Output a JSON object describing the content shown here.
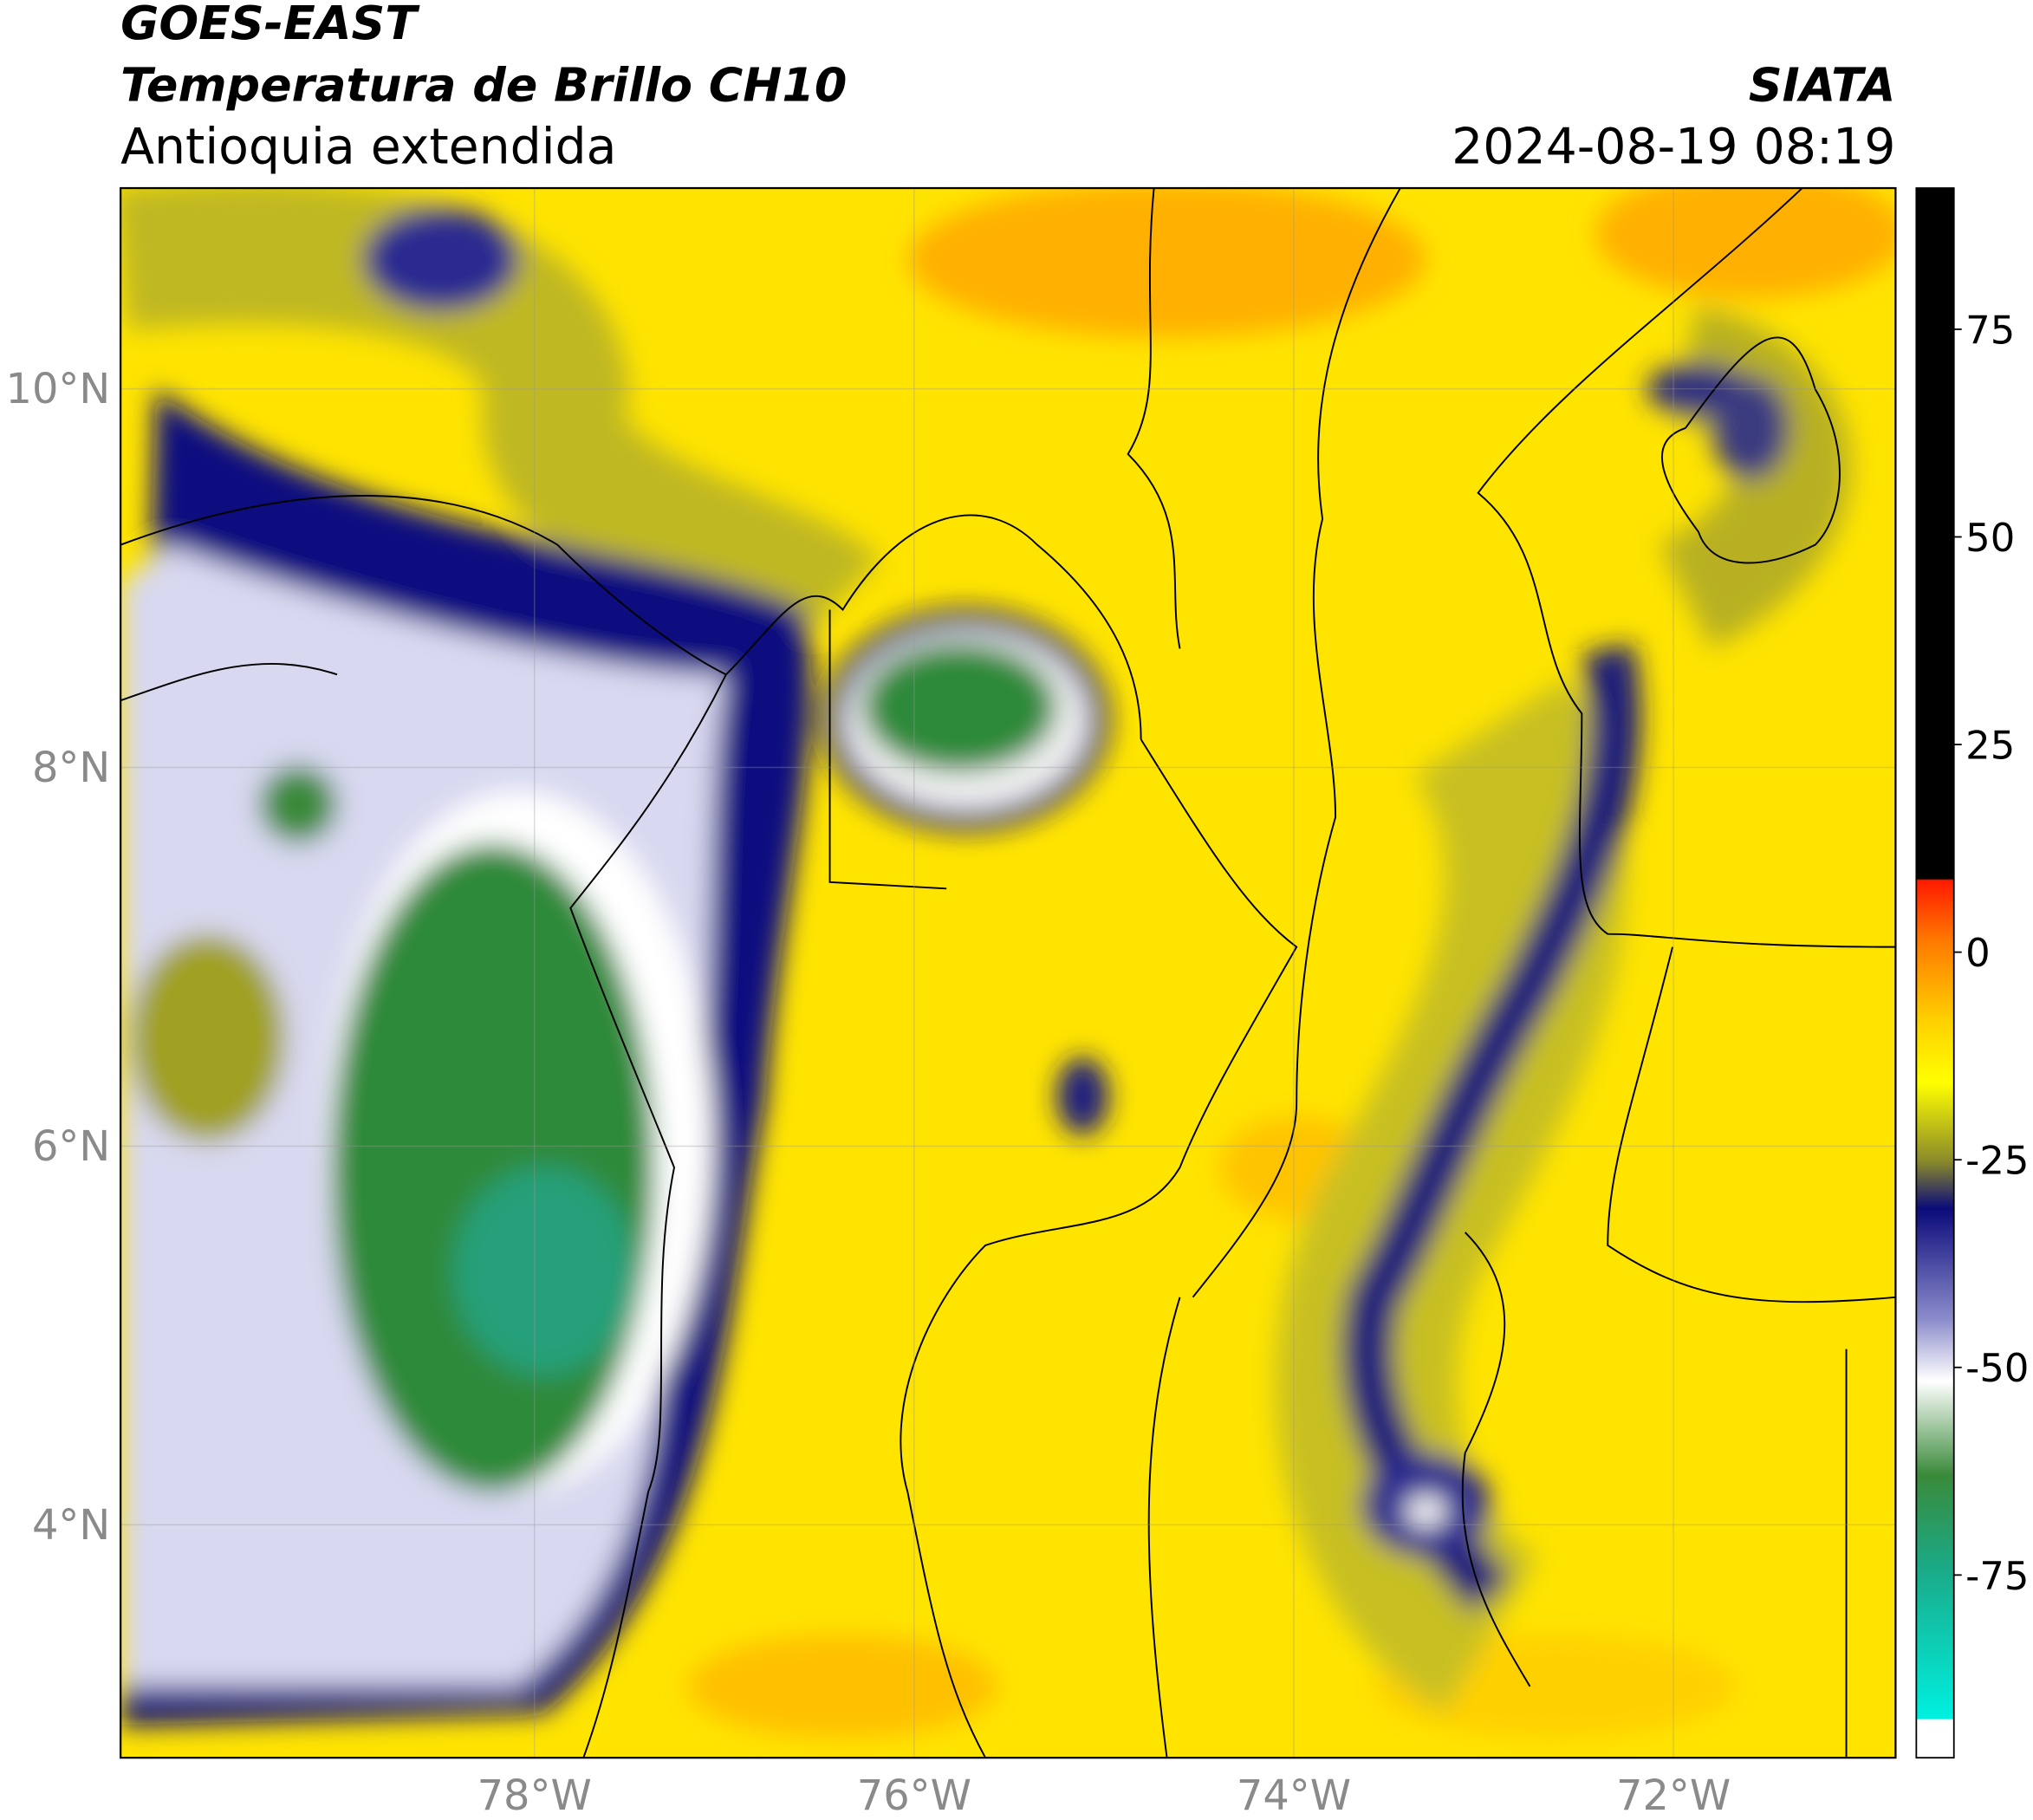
{
  "header": {
    "source": "GOES-EAST",
    "product": "Temperatura de Brillo CH10",
    "region": "Antioquia extendida",
    "agency": "SIATA",
    "datetime": "2024-08-19 08:19"
  },
  "map": {
    "xlim": [
      -80.18,
      -70.83
    ],
    "ylim": [
      2.77,
      11.06
    ],
    "grid": true,
    "xticks": [
      {
        "value": -78,
        "label": "78°W"
      },
      {
        "value": -76,
        "label": "76°W"
      },
      {
        "value": -74,
        "label": "74°W"
      },
      {
        "value": -72,
        "label": "72°W"
      }
    ],
    "yticks": [
      {
        "value": 4,
        "label": "4°N"
      },
      {
        "value": 6,
        "label": "6°N"
      },
      {
        "value": 8,
        "label": "8°N"
      },
      {
        "value": 10,
        "label": "10°N"
      }
    ]
  },
  "colorbar": {
    "lim": [
      -97,
      92
    ],
    "ticks": [
      -75,
      -50,
      -25,
      0,
      25,
      50,
      75
    ]
  }
}
